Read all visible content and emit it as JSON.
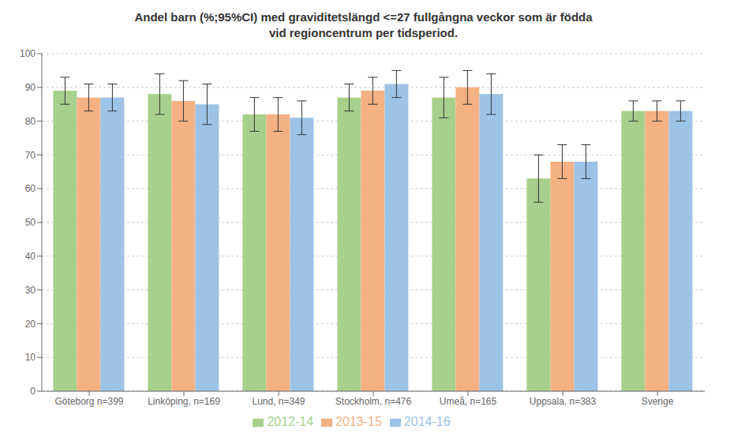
{
  "chart_data": {
    "type": "bar",
    "title": "Andel barn (%;95%CI) med graviditetslängd <=27 fullgångna veckor som är födda\nvid regioncentrum per tidsperiod.",
    "categories": [
      "Göteborg n=399",
      "Linköping, n=169",
      "Lund, n=349",
      "Stockholm, n=476",
      "Umeå, n=165",
      "Uppsala, n=383",
      "Sverige"
    ],
    "series": [
      {
        "name": "2012-14",
        "color": "#a8d08d",
        "values": [
          89,
          88,
          82,
          87,
          87,
          63,
          83
        ],
        "errors_low": [
          4,
          6,
          5,
          4,
          6,
          7,
          3
        ],
        "errors_high": [
          4,
          6,
          5,
          4,
          6,
          7,
          3
        ]
      },
      {
        "name": "2013-15",
        "color": "#f4b183",
        "values": [
          87,
          86,
          82,
          89,
          90,
          68,
          83
        ],
        "errors_low": [
          4,
          6,
          5,
          4,
          5,
          5,
          3
        ],
        "errors_high": [
          4,
          6,
          5,
          4,
          5,
          5,
          3
        ]
      },
      {
        "name": "2014-16",
        "color": "#9dc3e6",
        "values": [
          87,
          85,
          81,
          91,
          88,
          68,
          83
        ],
        "errors_low": [
          4,
          6,
          5,
          4,
          6,
          5,
          3
        ],
        "errors_high": [
          4,
          6,
          5,
          4,
          6,
          5,
          3
        ]
      }
    ],
    "ylim": [
      0,
      100
    ],
    "yticks": [
      0,
      10,
      20,
      30,
      40,
      50,
      60,
      70,
      80,
      90,
      100
    ],
    "grid": true,
    "legend": "bottom"
  }
}
